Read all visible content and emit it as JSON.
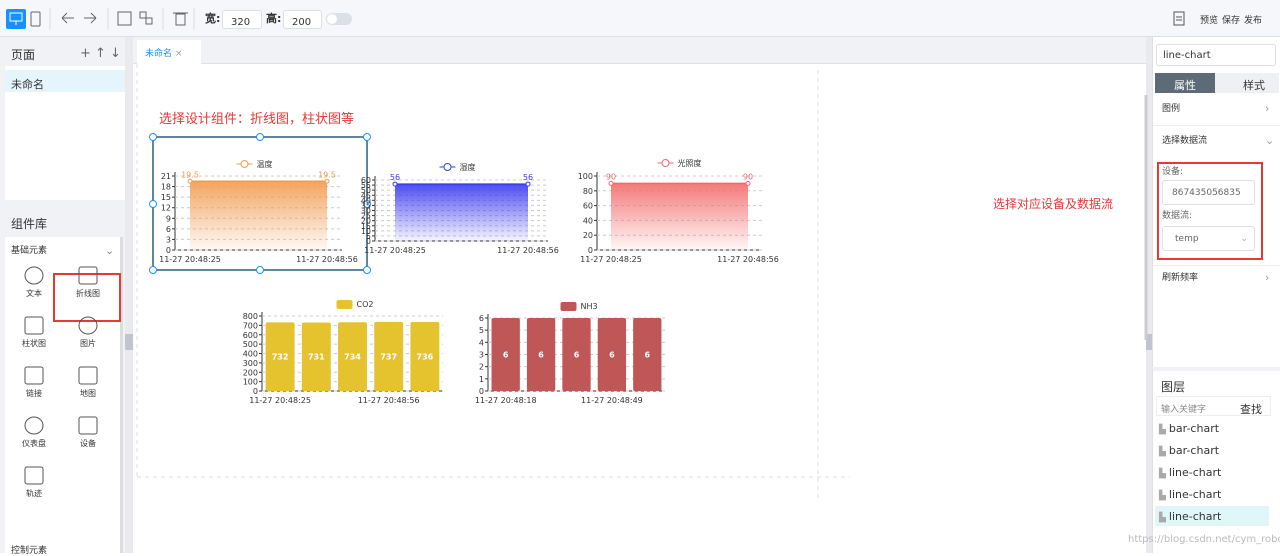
{
  "toolbar": {
    "width_label": "宽:",
    "width_value": "320",
    "height_label": "高:",
    "height_value": "200",
    "actions": [
      "预览",
      "保存",
      "发布"
    ]
  },
  "pages": {
    "title": "页面",
    "items": [
      "未命名"
    ]
  },
  "library": {
    "title": "组件库",
    "section": "基础元素",
    "components": [
      "文本",
      "折线图",
      "柱状图",
      "图片",
      "链接",
      "地图",
      "仪表盘",
      "设备",
      "轨迹"
    ],
    "next_section": "控制元素"
  },
  "tabs": [
    "未命名"
  ],
  "canvas": {
    "annotations": [
      "选择设计组件：折线图，柱状图等",
      "选择对应设备及数据流"
    ],
    "charts": [
      {
        "type": "line",
        "legend": "温度",
        "color": "#f29a4e",
        "ylim": [
          0,
          21
        ],
        "yticks": [
          0,
          3,
          6,
          9,
          12,
          15,
          18,
          21
        ],
        "categories": [
          "11-27 20:48:25",
          "11-27 20:48:56"
        ],
        "values": [
          19.5,
          19.5
        ]
      },
      {
        "type": "line",
        "legend": "湿度",
        "color": "#3a3af0",
        "ylim": [
          0,
          60
        ],
        "yticks": [
          0,
          5,
          10,
          15,
          20,
          25,
          30,
          35,
          40,
          45,
          50,
          55,
          60
        ],
        "categories": [
          "11-27 20:48:25",
          "11-27 20:48:56"
        ],
        "values": [
          56,
          56
        ]
      },
      {
        "type": "line",
        "legend": "光照度",
        "color": "#f26b6b",
        "ylim": [
          0,
          100
        ],
        "yticks": [
          0,
          20,
          40,
          60,
          80,
          100
        ],
        "categories": [
          "11-27 20:48:25",
          "11-27 20:48:56"
        ],
        "values": [
          90,
          90
        ]
      },
      {
        "type": "bar",
        "legend": "CO2",
        "color": "#e5c32e",
        "ylim": [
          0,
          800
        ],
        "yticks": [
          0,
          100,
          200,
          300,
          400,
          500,
          600,
          700,
          800
        ],
        "categories": [
          "11-27 20:48:25",
          null,
          null,
          "11-27 20:48:56",
          null
        ],
        "values": [
          732,
          731,
          734,
          737,
          736
        ]
      },
      {
        "type": "bar",
        "legend": "NH3",
        "color": "#c05757",
        "ylim": [
          0,
          6
        ],
        "yticks": [
          0,
          1,
          2,
          3,
          4,
          5,
          6
        ],
        "categories": [
          "11-27 20:48:18",
          null,
          null,
          "11-27 20:48:49",
          null
        ],
        "values": [
          6,
          6,
          6,
          6,
          6
        ]
      }
    ]
  },
  "properties": {
    "search": "line-chart",
    "tabs": [
      "属性",
      "样式"
    ],
    "rows": [
      "图例",
      "选择数据流"
    ],
    "device_label": "设备:",
    "device_value": "867435056835",
    "stream_label": "数据流:",
    "stream_value": "temp",
    "refresh": "刷新频率"
  },
  "layers": {
    "title": "图层",
    "placeholder": "输入关键字",
    "search_button": "查找",
    "items": [
      "bar-chart",
      "bar-chart",
      "line-chart",
      "line-chart",
      "line-chart"
    ]
  },
  "watermark": "https://blog.csdn.net/cym_robot"
}
